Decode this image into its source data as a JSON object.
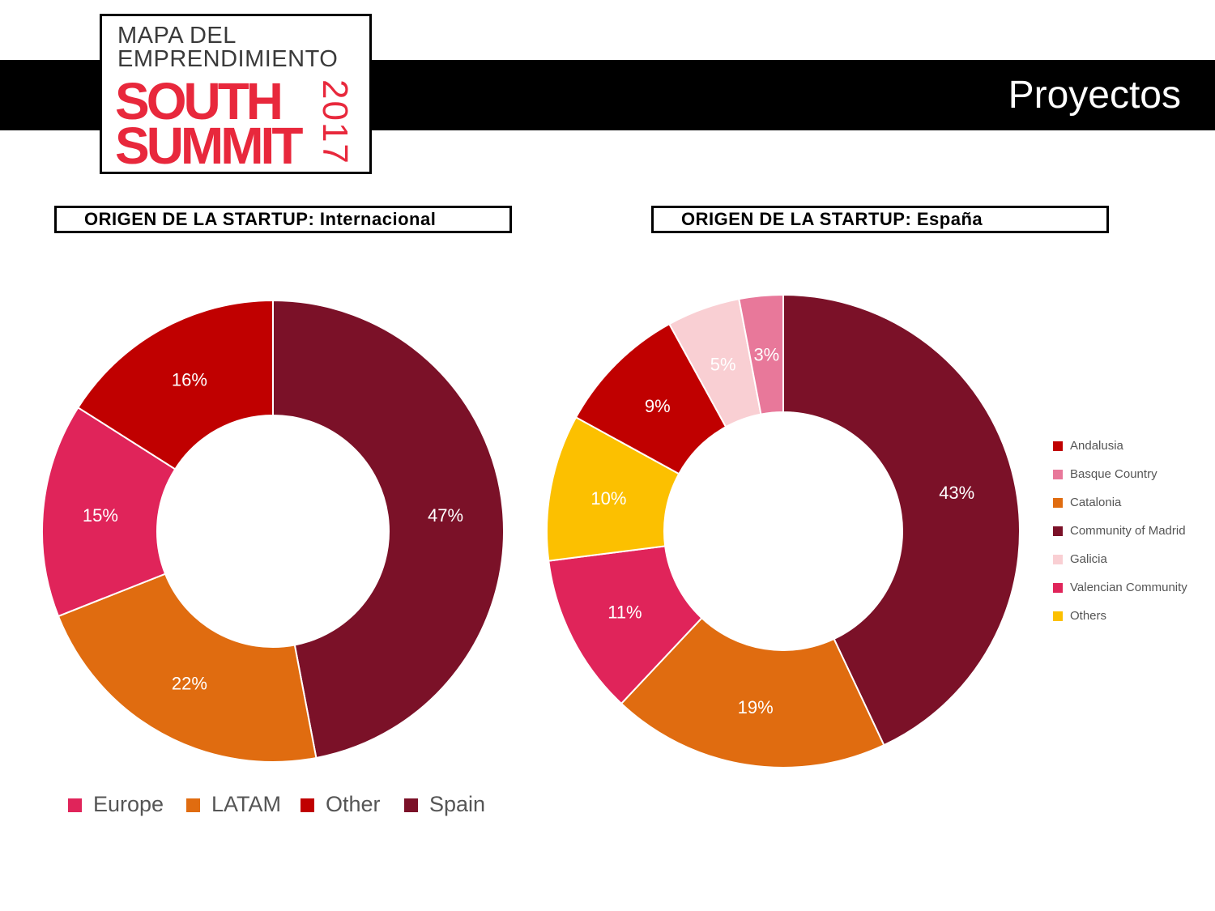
{
  "header": {
    "title": "Proyectos",
    "logo_text": [
      "MAPA DEL",
      "EMPRENDIMIENTO",
      "SOUTH",
      "SUMMIT",
      "2017"
    ]
  },
  "chart_data": [
    {
      "type": "pie",
      "donut": true,
      "title": "ORIGEN DE LA STARTUP: Internacional",
      "legend": "bottom",
      "slices": [
        {
          "label": "Spain",
          "value": 47,
          "text": "47%",
          "color": "#7b1128"
        },
        {
          "label": "LATAM",
          "value": 22,
          "text": "22%",
          "color": "#e06c10"
        },
        {
          "label": "Europe",
          "value": 15,
          "text": "15%",
          "color": "#e0245a"
        },
        {
          "label": "Other",
          "value": 16,
          "text": "16%",
          "color": "#c00000"
        }
      ],
      "legend_order": [
        "Europe",
        "LATAM",
        "Other",
        "Spain"
      ]
    },
    {
      "type": "pie",
      "donut": true,
      "title": "ORIGEN DE LA STARTUP: España",
      "legend": "right",
      "slices": [
        {
          "label": "Community of Madrid",
          "value": 43,
          "text": "43%",
          "color": "#7b1128"
        },
        {
          "label": "Catalonia",
          "value": 19,
          "text": "19%",
          "color": "#e06c10"
        },
        {
          "label": "Valencian Community",
          "value": 11,
          "text": "11%",
          "color": "#e0245a"
        },
        {
          "label": "Others",
          "value": 10,
          "text": "10%",
          "color": "#fcc000"
        },
        {
          "label": "Andalusia",
          "value": 9,
          "text": "9%",
          "color": "#c00000"
        },
        {
          "label": "Galicia",
          "value": 5,
          "text": "5%",
          "color": "#f9cfd3"
        },
        {
          "label": "Basque Country",
          "value": 3,
          "text": "3%",
          "color": "#e8789a"
        }
      ],
      "legend_order": [
        "Andalusia",
        "Basque Country",
        "Catalonia",
        "Community of Madrid",
        "Galicia",
        "Valencian Community",
        "Others"
      ]
    }
  ]
}
